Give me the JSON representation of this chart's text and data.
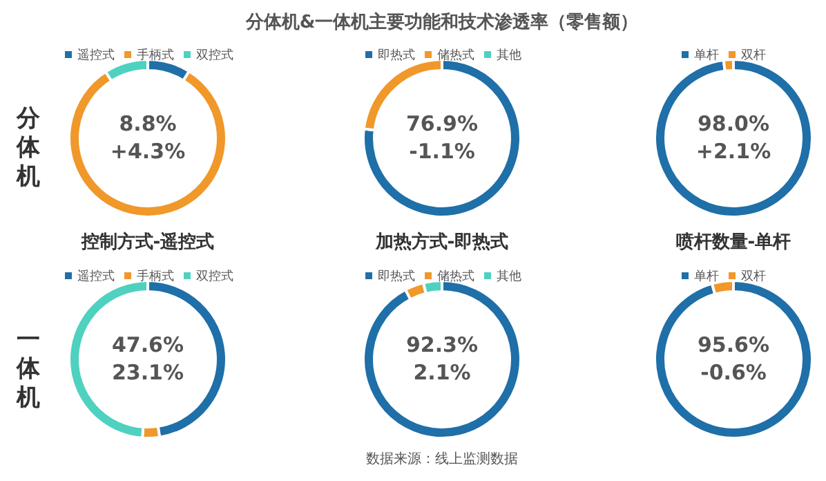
{
  "chart_data": [
    {
      "type": "donut",
      "ylabel": "分体机",
      "categories": [
        "遥控式",
        "手柄式",
        "双控式"
      ],
      "values": [
        8.8,
        82.2,
        9.0
      ],
      "colors": [
        "#1f6fa8",
        "#f0982a",
        "#4fd1c0"
      ],
      "legend": "top",
      "annotations": [
        "8.8%",
        "+4.3%"
      ]
    },
    {
      "type": "donut",
      "title": "分体机&一体机主要功能和技术渗透率（零售额）",
      "categories": [
        "即热式",
        "储热式",
        "其他"
      ],
      "values": [
        76.9,
        23.1,
        0
      ],
      "colors": [
        "#1f6fa8",
        "#f0982a",
        "#4fd1c0"
      ],
      "legend": "top",
      "annotations": [
        "76.9%",
        "-1.1%"
      ]
    },
    {
      "type": "donut",
      "categories": [
        "单杆",
        "双杆"
      ],
      "values": [
        98.0,
        2.0
      ],
      "colors": [
        "#1f6fa8",
        "#f0982a"
      ],
      "legend": "top",
      "annotations": [
        "98.0%",
        "+2.1%"
      ]
    },
    {
      "type": "donut",
      "title": "控制方式-遥控式",
      "ylabel": "一体机",
      "categories": [
        "遥控式",
        "手柄式",
        "双控式"
      ],
      "values": [
        47.6,
        3.5,
        48.9
      ],
      "colors": [
        "#1f6fa8",
        "#f0982a",
        "#4fd1c0"
      ],
      "legend": "top",
      "annotations": [
        "47.6%",
        "23.1%"
      ]
    },
    {
      "type": "donut",
      "title": "加热方式-即热式",
      "categories": [
        "即热式",
        "储热式",
        "其他"
      ],
      "values": [
        92.3,
        3.9,
        3.8
      ],
      "colors": [
        "#1f6fa8",
        "#f0982a",
        "#4fd1c0"
      ],
      "legend": "top",
      "annotations": [
        "92.3%",
        "2.1%",
        "数据来源：线上监测数据"
      ]
    },
    {
      "type": "donut",
      "title": "喷杆数量-单杆",
      "categories": [
        "单杆",
        "双杆"
      ],
      "values": [
        95.6,
        4.4
      ],
      "colors": [
        "#1f6fa8",
        "#f0982a"
      ],
      "legend": "top",
      "annotations": [
        "95.6%",
        "-0.6%"
      ]
    }
  ]
}
